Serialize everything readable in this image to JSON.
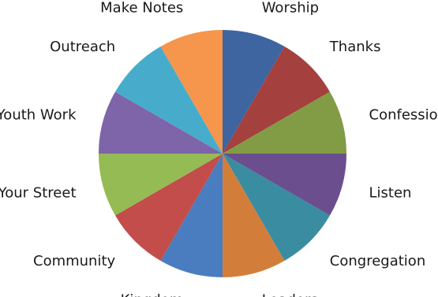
{
  "chart_data": {
    "type": "pie",
    "title": "",
    "start_angle_deg": 0,
    "direction": "clockwise",
    "legend": "none",
    "categories": [
      "Worship",
      "Thanks",
      "Confession",
      "Listen",
      "Congregation",
      "Leaders",
      "Kingdom",
      "Community",
      "Your Street",
      "Youth Work",
      "Outreach",
      "Make Notes"
    ],
    "values": [
      1,
      1,
      1,
      1,
      1,
      1,
      1,
      1,
      1,
      1,
      1,
      1
    ],
    "colors": [
      "#3E65A0",
      "#A4403D",
      "#819C45",
      "#6A4E8E",
      "#3A8CA1",
      "#D27E3A",
      "#4A7CC0",
      "#C24D4A",
      "#95BB55",
      "#7E64A8",
      "#47ACCB",
      "#F5964C"
    ]
  }
}
